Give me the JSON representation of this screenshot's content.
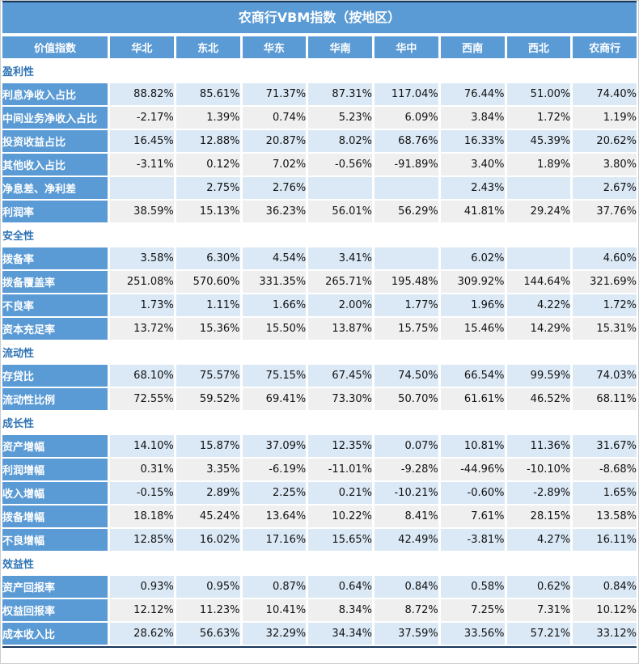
{
  "title": "农商行VBM指数（按地区）",
  "colors": {
    "header_blue": "#5b9bd5",
    "row_light_blue": "#dbe9f6",
    "row_light_gray": "#efefef",
    "section_text_blue": "#2e74b5",
    "frame_dark_navy": "#16365c"
  },
  "table": {
    "columns": [
      "价值指数",
      "华北",
      "东北",
      "华东",
      "华南",
      "华中",
      "西南",
      "西北",
      "农商行"
    ],
    "sections": [
      {
        "name": "盈利性",
        "rows": [
          {
            "label": "利息净收入占比",
            "values": [
              "88.82%",
              "85.61%",
              "71.37%",
              "87.31%",
              "117.04%",
              "76.44%",
              "51.00%",
              "74.40%"
            ]
          },
          {
            "label": "中间业务净收入占比",
            "values": [
              "-2.17%",
              "1.39%",
              "0.74%",
              "5.23%",
              "6.09%",
              "3.84%",
              "1.72%",
              "1.19%"
            ]
          },
          {
            "label": "投资收益占比",
            "values": [
              "16.45%",
              "12.88%",
              "20.87%",
              "8.02%",
              "68.76%",
              "16.33%",
              "45.39%",
              "20.62%"
            ]
          },
          {
            "label": "其他收入占比",
            "values": [
              "-3.11%",
              "0.12%",
              "7.02%",
              "-0.56%",
              "-91.89%",
              "3.40%",
              "1.89%",
              "3.80%"
            ]
          },
          {
            "label": "净息差、净利差",
            "values": [
              "",
              "2.75%",
              "2.76%",
              "",
              "",
              "2.43%",
              "",
              "2.67%"
            ]
          },
          {
            "label": "利润率",
            "values": [
              "38.59%",
              "15.13%",
              "36.23%",
              "56.01%",
              "56.29%",
              "41.81%",
              "29.24%",
              "37.76%"
            ]
          }
        ]
      },
      {
        "name": "安全性",
        "rows": [
          {
            "label": "拨备率",
            "values": [
              "3.58%",
              "6.30%",
              "4.54%",
              "3.41%",
              "",
              "6.02%",
              "",
              "4.60%"
            ]
          },
          {
            "label": "拨备覆盖率",
            "values": [
              "251.08%",
              "570.60%",
              "331.35%",
              "265.71%",
              "195.48%",
              "309.92%",
              "144.64%",
              "321.69%"
            ]
          },
          {
            "label": "不良率",
            "values": [
              "1.73%",
              "1.11%",
              "1.66%",
              "2.00%",
              "1.77%",
              "1.96%",
              "4.22%",
              "1.72%"
            ]
          },
          {
            "label": "资本充足率",
            "values": [
              "13.72%",
              "15.36%",
              "15.50%",
              "13.87%",
              "15.75%",
              "15.46%",
              "14.29%",
              "15.31%"
            ]
          }
        ]
      },
      {
        "name": "流动性",
        "rows": [
          {
            "label": "存贷比",
            "values": [
              "68.10%",
              "75.57%",
              "75.15%",
              "67.45%",
              "74.50%",
              "66.54%",
              "99.59%",
              "74.03%"
            ]
          },
          {
            "label": "流动性比例",
            "values": [
              "72.55%",
              "59.52%",
              "69.41%",
              "73.30%",
              "50.70%",
              "61.61%",
              "46.52%",
              "68.11%"
            ]
          }
        ]
      },
      {
        "name": "成长性",
        "rows": [
          {
            "label": "资产增幅",
            "values": [
              "14.10%",
              "15.87%",
              "37.09%",
              "12.35%",
              "0.07%",
              "10.81%",
              "11.36%",
              "31.67%"
            ]
          },
          {
            "label": "利润增幅",
            "values": [
              "0.31%",
              "3.35%",
              "-6.19%",
              "-11.01%",
              "-9.28%",
              "-44.96%",
              "-10.10%",
              "-8.68%"
            ]
          },
          {
            "label": "收入增幅",
            "values": [
              "-0.15%",
              "2.89%",
              "2.25%",
              "0.21%",
              "-10.21%",
              "-0.60%",
              "-2.89%",
              "1.65%"
            ]
          },
          {
            "label": "拨备增幅",
            "values": [
              "18.18%",
              "45.24%",
              "13.64%",
              "10.22%",
              "8.41%",
              "7.61%",
              "28.15%",
              "13.58%"
            ]
          },
          {
            "label": "不良增幅",
            "values": [
              "12.85%",
              "16.02%",
              "17.16%",
              "15.65%",
              "42.49%",
              "-3.81%",
              "4.27%",
              "16.11%"
            ]
          }
        ]
      },
      {
        "name": "效益性",
        "rows": [
          {
            "label": "资产回报率",
            "values": [
              "0.93%",
              "0.95%",
              "0.87%",
              "0.64%",
              "0.84%",
              "0.58%",
              "0.62%",
              "0.84%"
            ]
          },
          {
            "label": "权益回报率",
            "values": [
              "12.12%",
              "11.23%",
              "10.41%",
              "8.34%",
              "8.72%",
              "7.25%",
              "7.31%",
              "10.12%"
            ]
          },
          {
            "label": "成本收入比",
            "values": [
              "28.62%",
              "56.63%",
              "32.29%",
              "34.34%",
              "37.59%",
              "33.56%",
              "57.21%",
              "33.12%"
            ]
          }
        ]
      }
    ]
  }
}
